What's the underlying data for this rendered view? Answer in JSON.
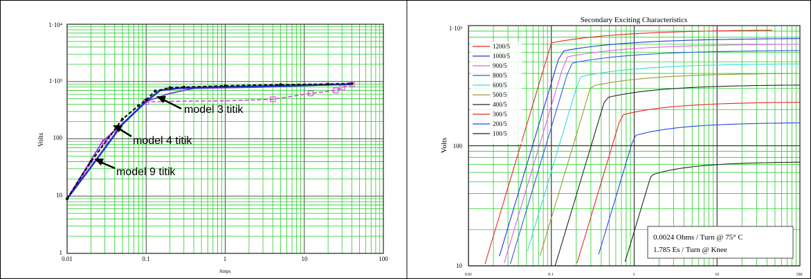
{
  "chart_data": [
    {
      "type": "line",
      "title": "",
      "xlabel": "Amps",
      "ylabel": "Volts",
      "xscale": "log",
      "yscale": "log",
      "xlim": [
        0.01,
        100
      ],
      "ylim": [
        1,
        10000
      ],
      "grid": true,
      "x_tick_labels": [
        "0.01",
        "0.1",
        "1",
        "10",
        "100"
      ],
      "y_tick_labels": [
        "1",
        "10",
        "100",
        "1·10³",
        "1·10⁴"
      ],
      "colors": {
        "grid_minor": "#22cc22",
        "grid_major": "#555555",
        "measured": "#111111",
        "model_3": "#1a2fd6",
        "model_4": "#8a2be2",
        "model_9": "#e040e0"
      },
      "annotations": [
        {
          "text": "model 3 titik",
          "x": 0.2,
          "y": 480
        },
        {
          "text": "model 4 titik",
          "x": 0.035,
          "y": 145
        },
        {
          "text": "model 9 titik",
          "x": 0.021,
          "y": 45
        }
      ],
      "series": [
        {
          "key": "measured",
          "x": [
            0.01,
            0.02,
            0.05,
            0.08,
            0.1,
            0.13,
            0.2,
            0.3,
            1,
            5,
            20,
            40
          ],
          "y": [
            9,
            40,
            220,
            380,
            480,
            680,
            780,
            800,
            840,
            880,
            900,
            920
          ]
        },
        {
          "key": "model_3",
          "x": [
            0.01,
            0.02,
            0.05,
            0.1,
            0.15,
            0.25,
            1,
            10,
            40
          ],
          "y": [
            9,
            32,
            180,
            450,
            700,
            760,
            810,
            860,
            900
          ]
        },
        {
          "key": "model_4",
          "x": [
            0.01,
            0.028,
            0.06,
            0.1,
            0.2,
            0.4,
            3,
            40
          ],
          "y": [
            9,
            90,
            230,
            450,
            620,
            760,
            800,
            900
          ]
        },
        {
          "key": "model_9",
          "x": [
            0.01,
            0.02,
            0.03,
            0.06,
            0.1,
            0.2,
            1,
            4,
            12,
            25,
            30,
            40
          ],
          "y": [
            9,
            38,
            90,
            230,
            440,
            450,
            460,
            490,
            620,
            700,
            780,
            900
          ],
          "markers": [
            0.03,
            0.1,
            4,
            12,
            25,
            30,
            40
          ]
        }
      ]
    },
    {
      "type": "line",
      "title": "Secondary Exciting Characteristics",
      "xlabel": "",
      "ylabel": "Volts",
      "xscale": "log",
      "yscale": "log",
      "xlim": [
        0.01,
        100
      ],
      "ylim": [
        10,
        1000
      ],
      "grid": true,
      "x_tick_labels": [
        "0.01",
        "0.1",
        "1",
        "10",
        "100"
      ],
      "y_tick_labels": [
        "10",
        "100",
        "1·10³"
      ],
      "legend": {
        "position": "top-left"
      },
      "annotation_box": {
        "position": "bottom-right",
        "lines": [
          "0.0024 Ohms / Turn @ 75° C",
          "1.785 Es / Turn @ Knee"
        ]
      },
      "series": [
        {
          "name": "1200/5",
          "color": "#ee2222",
          "knee_x": 0.1,
          "vmax": 920,
          "i0": 0.01
        },
        {
          "name": "1000/5",
          "color": "#2233dd",
          "knee_x": 0.13,
          "vmax": 780,
          "i0": 0.013
        },
        {
          "name": "900/5",
          "color": "#ee55ee",
          "knee_x": 0.15,
          "vmax": 700,
          "i0": 0.015
        },
        {
          "name": "800/5",
          "color": "#3355ee",
          "knee_x": 0.17,
          "vmax": 620,
          "i0": 0.018
        },
        {
          "name": "600/5",
          "color": "#33dddd",
          "knee_x": 0.22,
          "vmax": 480,
          "i0": 0.03
        },
        {
          "name": "500/5",
          "color": "#999933",
          "knee_x": 0.3,
          "vmax": 400,
          "i0": 0.05
        },
        {
          "name": "400/5",
          "color": "#222222",
          "knee_x": 0.45,
          "vmax": 320,
          "i0": 0.06
        },
        {
          "name": "300/5",
          "color": "#ee2222",
          "knee_x": 0.7,
          "vmax": 230,
          "i0": 0.09
        },
        {
          "name": "200/5",
          "color": "#2244ee",
          "knee_x": 1.0,
          "vmax": 155,
          "i0": 0.2
        },
        {
          "name": "100/5",
          "color": "#222222",
          "knee_x": 1.6,
          "vmax": 73,
          "i0": 0.5
        }
      ]
    }
  ]
}
